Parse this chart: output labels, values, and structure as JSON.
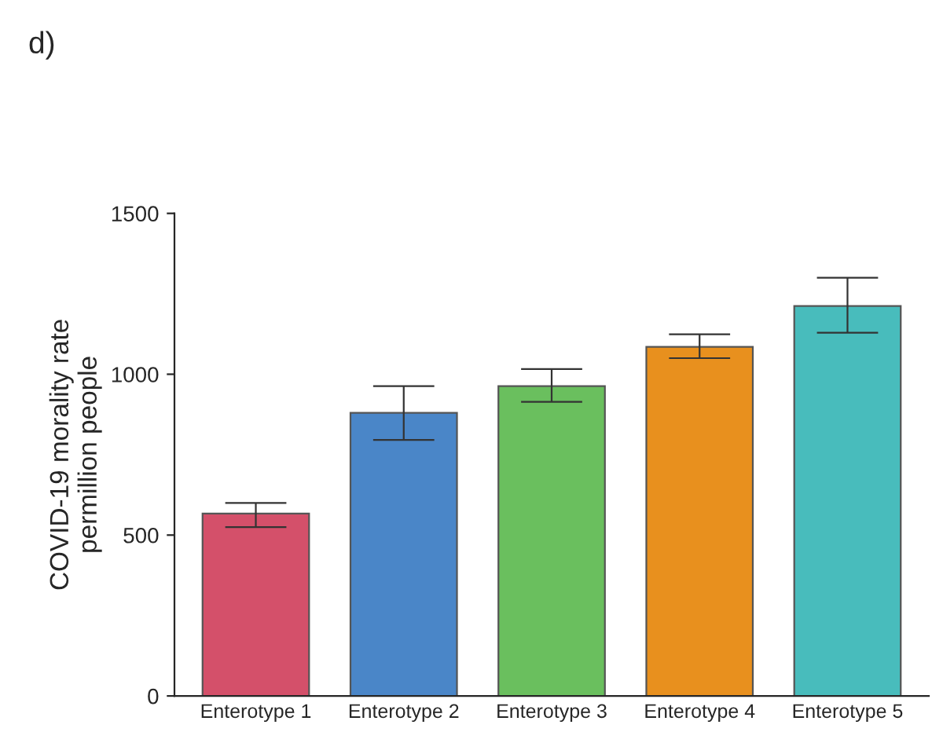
{
  "chart_data": {
    "type": "bar",
    "title": "d)",
    "ylabel": "COVID-19 morality rate\npermillion people",
    "categories": [
      "Enterotype 1",
      "Enterotype 2",
      "Enterotype 3",
      "Enterotype 4",
      "Enterotype 5"
    ],
    "values": [
      567,
      880,
      963,
      1085,
      1212
    ],
    "errors": [
      [
        525,
        600
      ],
      [
        796,
        963
      ],
      [
        914,
        1016
      ],
      [
        1050,
        1124
      ],
      [
        1129,
        1300
      ]
    ],
    "colors": [
      "#d4506a",
      "#4a86c8",
      "#6abf5e",
      "#e8901e",
      "#48bcbc"
    ],
    "ylim": [
      0,
      1500
    ],
    "yticks": [
      0,
      500,
      1000,
      1500
    ],
    "grid": false,
    "legend": false
  }
}
